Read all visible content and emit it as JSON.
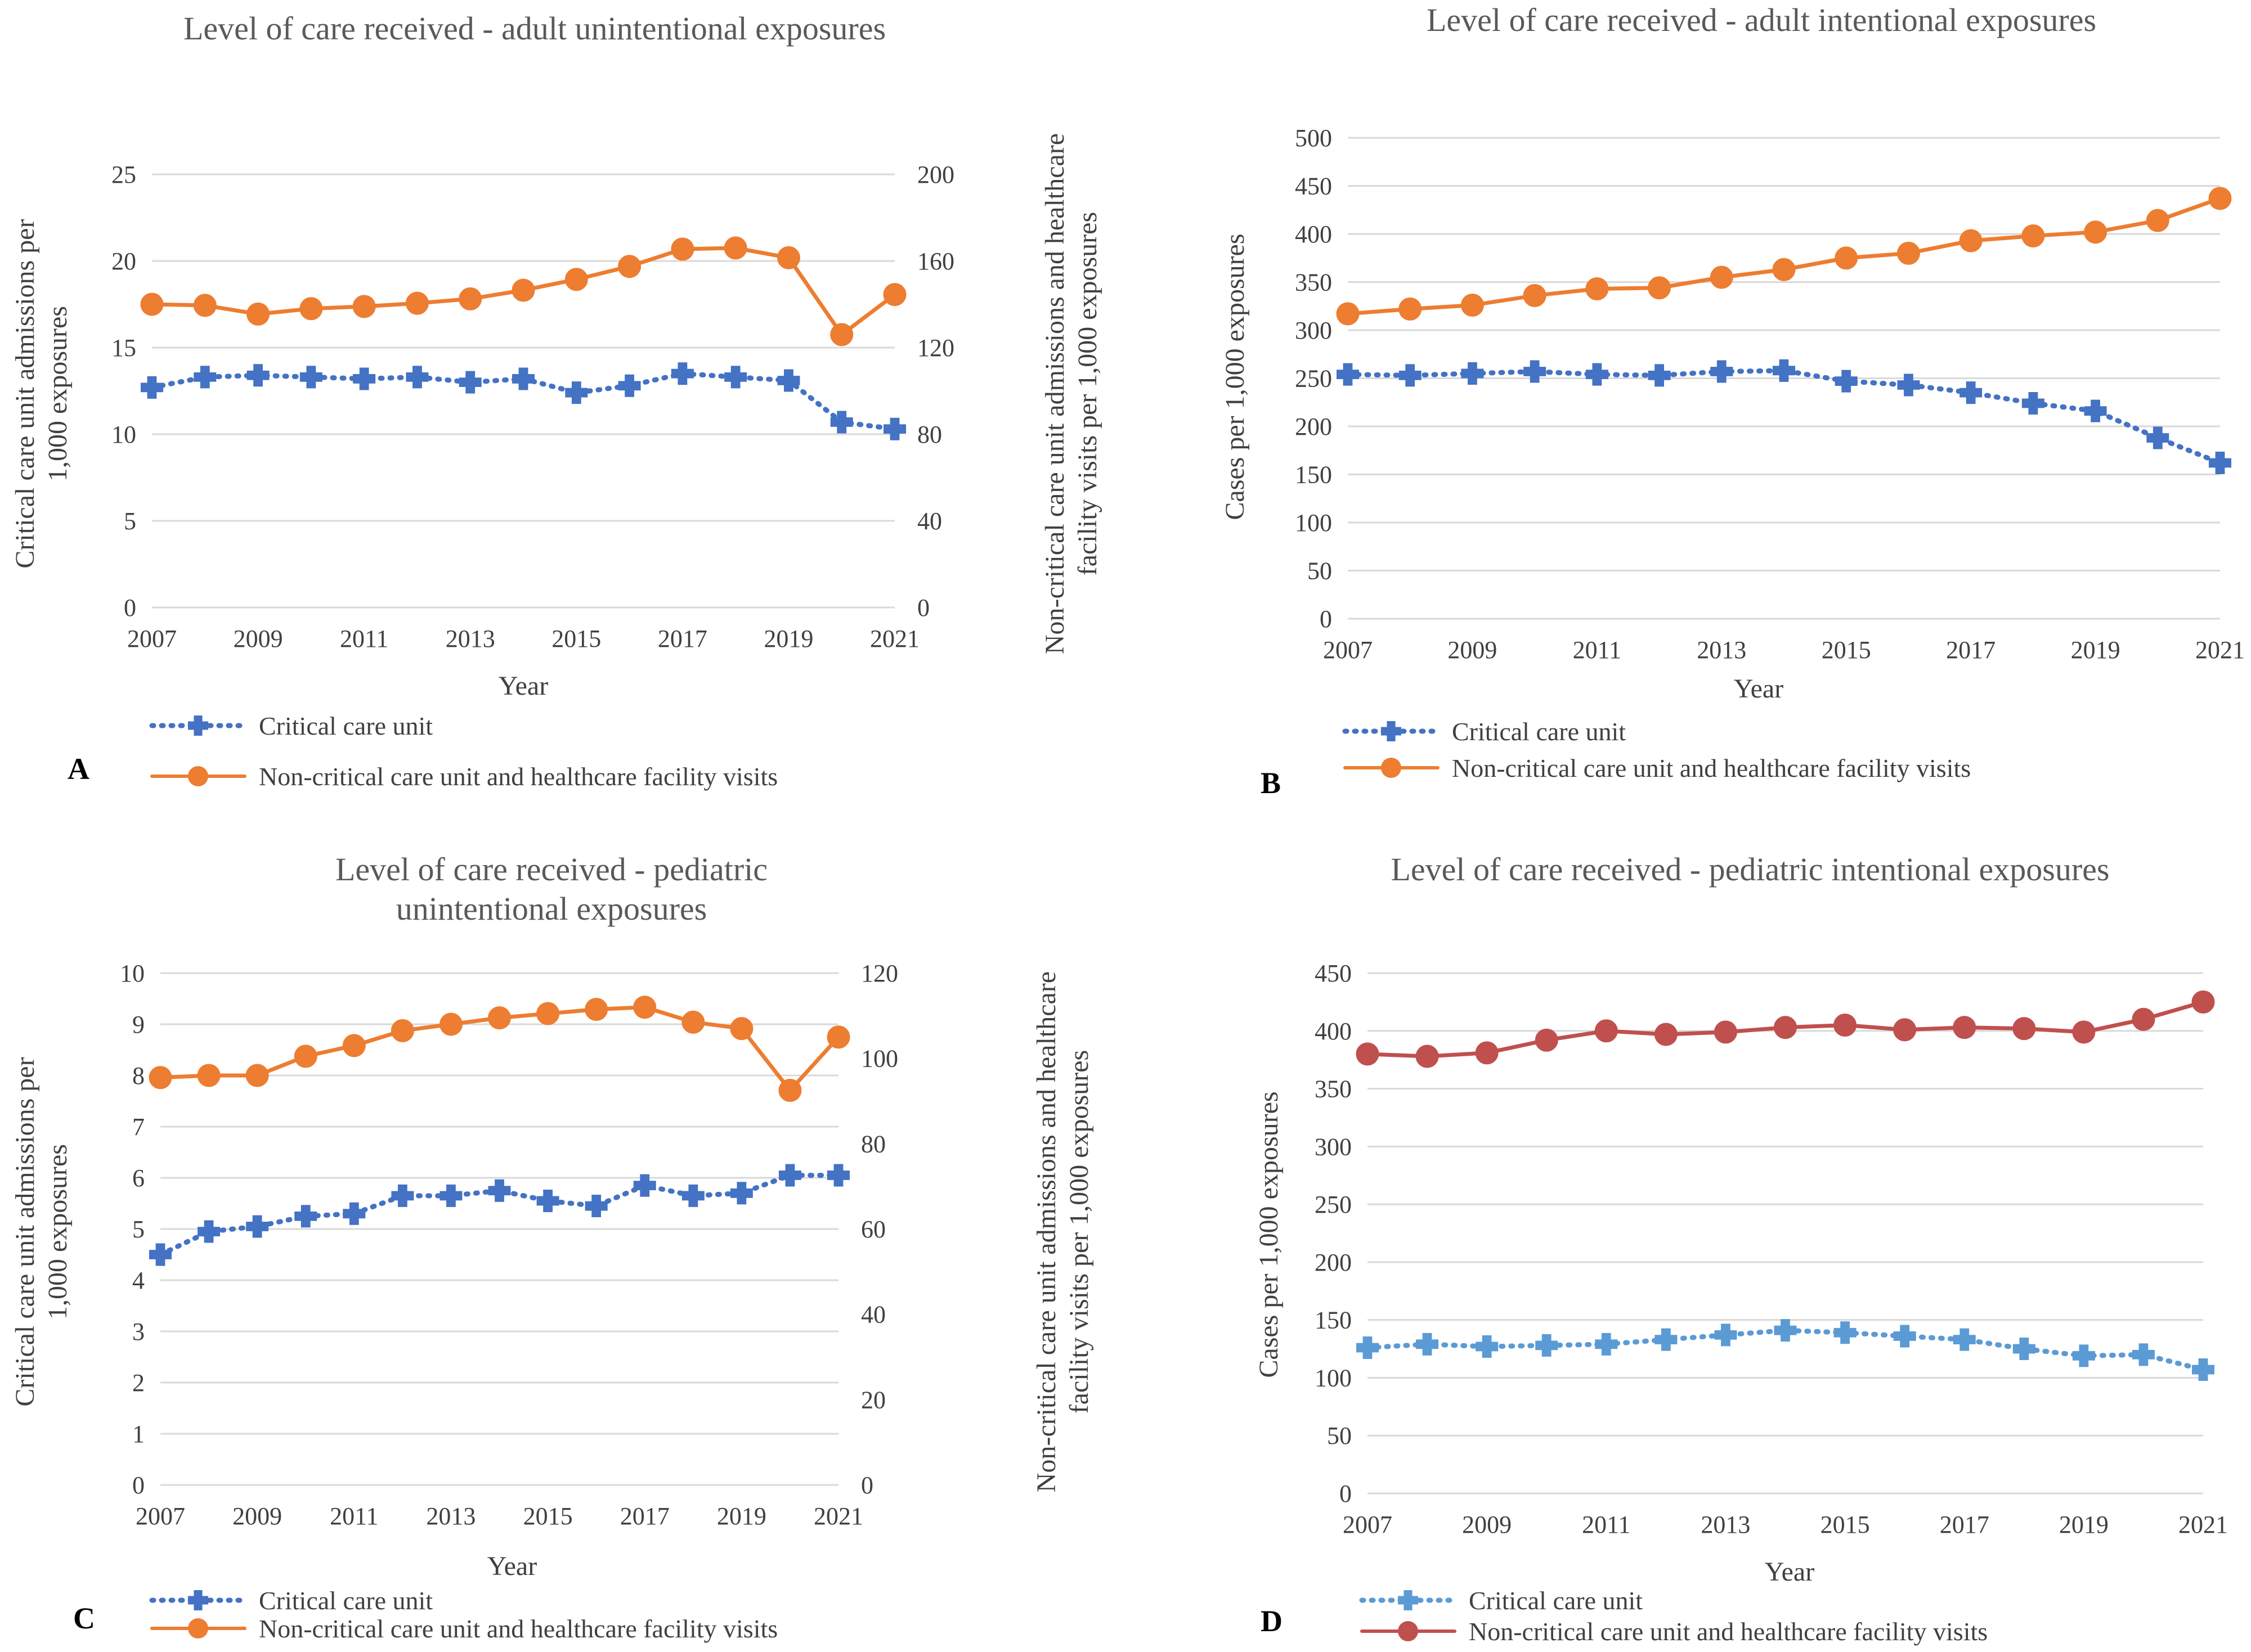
{
  "figure": {
    "panels": [
      "A",
      "B",
      "C",
      "D"
    ]
  },
  "chart_data": [
    {
      "type": "line",
      "panel": "A",
      "title": "Level of care received - adult unintentional exposures",
      "xlabel": "Year",
      "ylabel": "Critical care unit admissions per 1,000  exposures",
      "y2label": "Non-critical care unit  admissions  and healthcare facility visits per 1,000 exposures",
      "x": [
        2007,
        2008,
        2009,
        2010,
        2011,
        2012,
        2013,
        2014,
        2015,
        2016,
        2017,
        2018,
        2019,
        2020,
        2021
      ],
      "xticks": [
        "2007",
        "2009",
        "2011",
        "2013",
        "2015",
        "2017",
        "2019",
        "2021"
      ],
      "ylim": [
        0,
        25
      ],
      "yticks": [
        "0",
        "5",
        "10",
        "15",
        "20",
        "25"
      ],
      "y2lim": [
        0,
        200
      ],
      "y2ticks": [
        "0",
        "40",
        "80",
        "120",
        "160",
        "200"
      ],
      "series": [
        {
          "name": "Critical care unit",
          "axis": "left",
          "color": "#4472C4",
          "style": "dotted",
          "marker": "cross",
          "values": [
            12.7,
            13.3,
            13.4,
            13.3,
            13.2,
            13.3,
            13.0,
            13.2,
            12.4,
            12.8,
            13.5,
            13.3,
            13.1,
            10.7,
            10.3
          ]
        },
        {
          "name": "Non-critical care unit and healthcare facility visits",
          "axis": "right",
          "color": "#ED7D31",
          "style": "solid",
          "marker": "circle",
          "values": [
            140,
            139.5,
            135.5,
            138,
            139,
            140.5,
            142.5,
            146.5,
            151.5,
            157.5,
            165.5,
            166,
            161.5,
            126,
            144.5
          ]
        }
      ]
    },
    {
      "type": "line",
      "panel": "B",
      "title": "Level of care received - adult intentional exposures",
      "xlabel": "Year",
      "ylabel": "Cases per 1,000 exposures",
      "x": [
        2007,
        2008,
        2009,
        2010,
        2011,
        2012,
        2013,
        2014,
        2015,
        2016,
        2017,
        2018,
        2019,
        2020,
        2021
      ],
      "xticks": [
        "2007",
        "2009",
        "2011",
        "2013",
        "2015",
        "2017",
        "2019",
        "2021"
      ],
      "ylim": [
        0,
        500
      ],
      "yticks": [
        "0",
        "50",
        "100",
        "150",
        "200",
        "250",
        "300",
        "350",
        "400",
        "450",
        "500"
      ],
      "series": [
        {
          "name": "Critical care unit",
          "axis": "left",
          "color": "#4472C4",
          "style": "dotted",
          "marker": "cross",
          "values": [
            254,
            253,
            255,
            257,
            254,
            253,
            257,
            258,
            247,
            243,
            235,
            224,
            216,
            188,
            162
          ]
        },
        {
          "name": "Non-critical care unit and healthcare facility visits",
          "axis": "left",
          "color": "#ED7D31",
          "style": "solid",
          "marker": "circle",
          "values": [
            317,
            322,
            326,
            336,
            343,
            344,
            355,
            363,
            375,
            380,
            393,
            398,
            402,
            414,
            437
          ]
        }
      ]
    },
    {
      "type": "line",
      "panel": "C",
      "title": "Level of care received - pediatric unintentional exposures",
      "xlabel": "Year",
      "ylabel": "Critical care unit admissions per 1,000  exposures",
      "y2label": "Non-critical care unit  admissions  and healthcare facility visits per 1,000 exposures",
      "x": [
        2007,
        2008,
        2009,
        2010,
        2011,
        2012,
        2013,
        2014,
        2015,
        2016,
        2017,
        2018,
        2019,
        2020,
        2021
      ],
      "xticks": [
        "2007",
        "2009",
        "2011",
        "2013",
        "2015",
        "2017",
        "2019",
        "2021"
      ],
      "ylim": [
        0,
        10
      ],
      "yticks": [
        "0",
        "1",
        "2",
        "3",
        "4",
        "5",
        "6",
        "7",
        "8",
        "9",
        "10"
      ],
      "y2lim": [
        0,
        120
      ],
      "y2ticks": [
        "0",
        "20",
        "40",
        "60",
        "80",
        "100",
        "120"
      ],
      "series": [
        {
          "name": "Critical care unit",
          "axis": "left",
          "color": "#4472C4",
          "style": "dotted",
          "marker": "cross",
          "values": [
            4.5,
            4.95,
            5.05,
            5.25,
            5.3,
            5.65,
            5.65,
            5.75,
            5.55,
            5.45,
            5.85,
            5.65,
            5.7,
            6.05,
            6.05
          ]
        },
        {
          "name": "Non-critical care unit and healthcare facility visits",
          "axis": "right",
          "color": "#ED7D31",
          "style": "solid",
          "marker": "circle",
          "values": [
            95.5,
            96,
            96,
            100.5,
            103,
            106.5,
            108,
            109.5,
            110.5,
            111.5,
            112,
            108.5,
            107,
            92.5,
            105
          ]
        }
      ]
    },
    {
      "type": "line",
      "panel": "D",
      "title": "Level of care received - pediatric intentional exposures",
      "xlabel": "Year",
      "ylabel": "Cases per 1,000 exposures",
      "x": [
        2007,
        2008,
        2009,
        2010,
        2011,
        2012,
        2013,
        2014,
        2015,
        2016,
        2017,
        2018,
        2019,
        2020,
        2021
      ],
      "xticks": [
        "2007",
        "2009",
        "2011",
        "2013",
        "2015",
        "2017",
        "2019",
        "2021"
      ],
      "ylim": [
        0,
        450
      ],
      "yticks": [
        "0",
        "50",
        "100",
        "150",
        "200",
        "250",
        "300",
        "350",
        "400",
        "450"
      ],
      "series": [
        {
          "name": "Critical care unit",
          "axis": "left",
          "color": "#5B9BD5",
          "style": "dotted",
          "marker": "cross",
          "values": [
            126,
            129,
            127,
            128,
            129,
            133,
            137,
            141,
            139,
            136,
            133,
            125,
            119,
            120,
            107
          ]
        },
        {
          "name": "Non-critical care unit and healthcare facility visits",
          "axis": "left",
          "color": "#C0504D",
          "style": "solid",
          "marker": "circle",
          "values": [
            380,
            378,
            381,
            392,
            400,
            397,
            399,
            403,
            405,
            401,
            403,
            402,
            399,
            410,
            425
          ]
        }
      ]
    }
  ]
}
